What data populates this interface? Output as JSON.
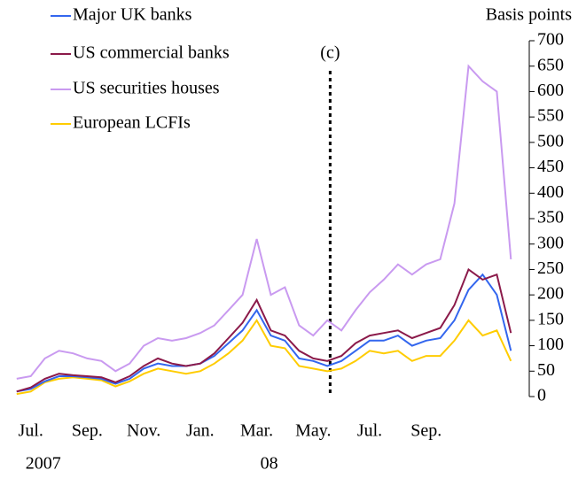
{
  "chart_data": {
    "type": "line",
    "y_axis_label": "Basis points",
    "annotation": {
      "x": 11.1,
      "label": "(c)"
    },
    "x": [
      0,
      0.5,
      1,
      1.5,
      2,
      2.5,
      3,
      3.5,
      4,
      4.5,
      5,
      5.5,
      6,
      6.5,
      7,
      7.5,
      8,
      8.5,
      9,
      9.5,
      10,
      10.5,
      11,
      11.5,
      12,
      12.5,
      13,
      13.5,
      14,
      14.5,
      15,
      15.5,
      16,
      16.5,
      17,
      17.5
    ],
    "xlim": [
      -0.15,
      18.15
    ],
    "xticks": [
      {
        "value": 0,
        "label": "Jul."
      },
      {
        "value": 2,
        "label": "Sep."
      },
      {
        "value": 4,
        "label": "Nov."
      },
      {
        "value": 6,
        "label": "Jan."
      },
      {
        "value": 8,
        "label": "Mar."
      },
      {
        "value": 10,
        "label": "May."
      },
      {
        "value": 12,
        "label": "Jul."
      },
      {
        "value": 14,
        "label": "Sep."
      }
    ],
    "x_year_labels": [
      {
        "value": 0,
        "label": "2007"
      },
      {
        "value": 8,
        "label": "08"
      }
    ],
    "ylim": [
      0,
      700
    ],
    "yticks": [
      0,
      50,
      100,
      150,
      200,
      250,
      300,
      350,
      400,
      450,
      500,
      550,
      600,
      650,
      700
    ],
    "series": [
      {
        "name": "Major UK banks",
        "color": "#3366ee",
        "values": [
          10,
          15,
          30,
          40,
          40,
          38,
          35,
          25,
          35,
          55,
          65,
          60,
          60,
          65,
          80,
          105,
          130,
          170,
          120,
          110,
          75,
          70,
          60,
          70,
          90,
          110,
          110,
          120,
          100,
          110,
          115,
          150,
          210,
          240,
          200,
          90
        ]
      },
      {
        "name": "US commercial banks",
        "color": "#8b1a4a",
        "values": [
          10,
          18,
          35,
          45,
          42,
          40,
          38,
          28,
          40,
          60,
          75,
          65,
          60,
          65,
          85,
          115,
          145,
          190,
          130,
          120,
          90,
          75,
          70,
          80,
          105,
          120,
          125,
          130,
          115,
          125,
          135,
          180,
          250,
          230,
          240,
          125
        ]
      },
      {
        "name": "US securities houses",
        "color": "#c99af0",
        "values": [
          35,
          40,
          75,
          90,
          85,
          75,
          70,
          50,
          65,
          100,
          115,
          110,
          115,
          125,
          140,
          170,
          200,
          310,
          200,
          215,
          140,
          120,
          150,
          130,
          170,
          205,
          230,
          260,
          240,
          260,
          270,
          380,
          650,
          620,
          600,
          270
        ]
      },
      {
        "name": "European LCFIs",
        "color": "#ffcc00",
        "values": [
          5,
          10,
          28,
          35,
          38,
          35,
          32,
          20,
          30,
          45,
          55,
          50,
          45,
          50,
          65,
          85,
          110,
          150,
          100,
          95,
          60,
          55,
          50,
          55,
          70,
          90,
          85,
          90,
          70,
          80,
          80,
          110,
          150,
          120,
          130,
          70
        ]
      }
    ]
  }
}
